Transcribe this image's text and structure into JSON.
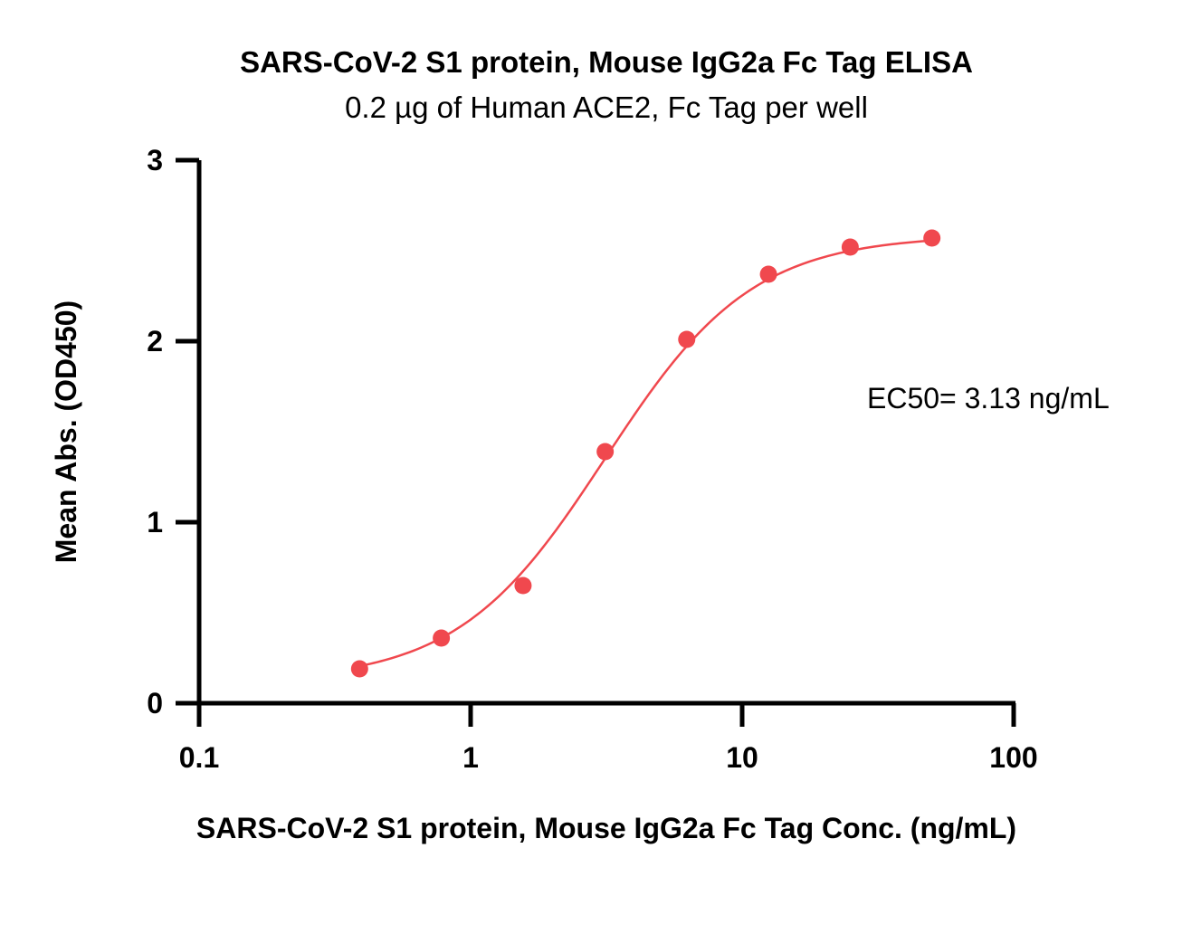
{
  "chart_data": {
    "type": "scatter",
    "title": "SARS-CoV-2 S1 protein, Mouse IgG2a Fc Tag ELISA",
    "subtitle": "0.2 µg of Human ACE2, Fc Tag per well",
    "xlabel": "SARS-CoV-2 S1 protein, Mouse IgG2a Fc Tag Conc. (ng/mL)",
    "ylabel": "Mean Abs. (OD450)",
    "xscale": "log",
    "xlim": [
      0.1,
      100
    ],
    "ylim": [
      0,
      3
    ],
    "xticks": [
      0.1,
      1,
      10,
      100
    ],
    "xtick_labels": [
      "0.1",
      "1",
      "10",
      "100"
    ],
    "yticks": [
      0,
      1,
      2,
      3
    ],
    "ytick_labels": [
      "0",
      "1",
      "2",
      "3"
    ],
    "grid": false,
    "color": "#f0484e",
    "series": [
      {
        "x": [
          0.39,
          0.78,
          1.56,
          3.13,
          6.25,
          12.5,
          25,
          50
        ],
        "y": [
          0.19,
          0.36,
          0.65,
          1.39,
          2.01,
          2.37,
          2.52,
          2.57
        ]
      }
    ],
    "fit": {
      "bottom": 0.12,
      "top": 2.585,
      "ec50": 3.13,
      "hill": 1.6
    },
    "annotation": "EC50= 3.13 ng/mL"
  }
}
